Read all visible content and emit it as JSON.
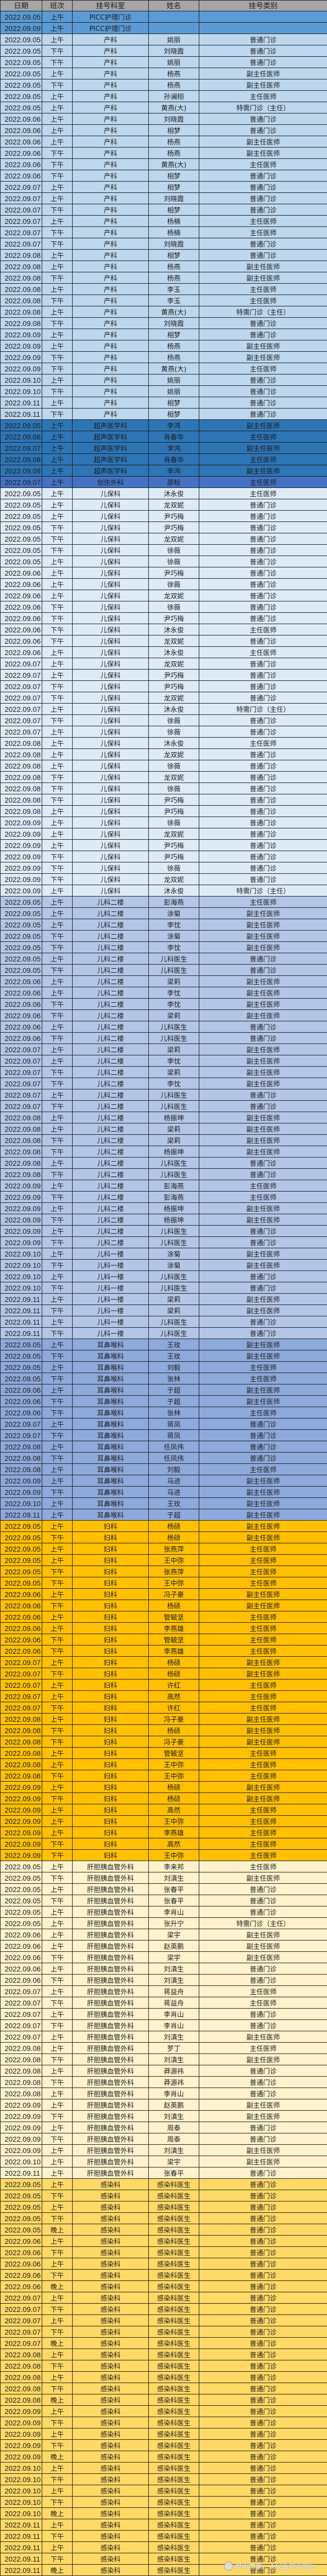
{
  "headers": [
    "日期",
    "班次",
    "挂号科室",
    "姓名",
    "挂号类别"
  ],
  "dept_colors": {
    "PICC护理门诊": "#5b9bd5",
    "产科": "#bdd7ee",
    "超声医学科": "#2e75b6",
    "创伤外科": "#4472c4",
    "儿保科": "#ddebf7",
    "儿科二楼": "#b4c6e7",
    "儿科一楼": "#b4c6e7",
    "耳鼻喉科": "#8ea9db",
    "妇科": "#ffc000",
    "肝胆胰血管外科": "#fff2cc",
    "感染科": "#ffd966"
  },
  "header_color": "#a6a6a6",
  "watermark": "昆明市第一人民医院北院区",
  "rows": [
    [
      "2022.09.05",
      "上午",
      "PICC护理门诊",
      "",
      ""
    ],
    [
      "2022.09.09",
      "上午",
      "PICC护理门诊",
      "",
      ""
    ],
    [
      "2022.09.05",
      "上午",
      "产科",
      "姚丽",
      "普通门诊"
    ],
    [
      "2022.09.05",
      "下午",
      "产科",
      "刘晓霞",
      "普通门诊"
    ],
    [
      "2022.09.05",
      "下午",
      "产科",
      "姚丽",
      "普通门诊"
    ],
    [
      "2022.09.05",
      "上午",
      "产科",
      "杨燕",
      "副主任医师"
    ],
    [
      "2022.09.05",
      "下午",
      "产科",
      "杨燕",
      "副主任医师"
    ],
    [
      "2022.09.05",
      "上午",
      "产科",
      "孙澜栩",
      "主任医师"
    ],
    [
      "2022.09.05",
      "上午",
      "产科",
      "黄燕(大)",
      "特需门诊（主任）"
    ],
    [
      "2022.09.06",
      "上午",
      "产科",
      "刘晓霞",
      "普通门诊"
    ],
    [
      "2022.09.06",
      "上午",
      "产科",
      "相梦",
      "普通门诊"
    ],
    [
      "2022.09.06",
      "上午",
      "产科",
      "杨燕",
      "副主任医师"
    ],
    [
      "2022.09.06",
      "下午",
      "产科",
      "杨燕",
      "副主任医师"
    ],
    [
      "2022.09.06",
      "下午",
      "产科",
      "黄燕(大)",
      "主任医师"
    ],
    [
      "2022.09.06",
      "下午",
      "产科",
      "相梦",
      "普通门诊"
    ],
    [
      "2022.09.07",
      "上午",
      "产科",
      "相梦",
      "普通门诊"
    ],
    [
      "2022.09.07",
      "上午",
      "产科",
      "刘晓霞",
      "普通门诊"
    ],
    [
      "2022.09.07",
      "下午",
      "产科",
      "相梦",
      "普通门诊"
    ],
    [
      "2022.09.07",
      "上午",
      "产科",
      "杨楠",
      "主任医师"
    ],
    [
      "2022.09.07",
      "下午",
      "产科",
      "杨楠",
      "主任医师"
    ],
    [
      "2022.09.07",
      "下午",
      "产科",
      "刘晓霞",
      "普通门诊"
    ],
    [
      "2022.09.08",
      "上午",
      "产科",
      "相梦",
      "普通门诊"
    ],
    [
      "2022.09.08",
      "上午",
      "产科",
      "杨燕",
      "副主任医师"
    ],
    [
      "2022.09.08",
      "下午",
      "产科",
      "杨燕",
      "副主任医师"
    ],
    [
      "2022.09.08",
      "上午",
      "产科",
      "李玉",
      "主任医师"
    ],
    [
      "2022.09.08",
      "下午",
      "产科",
      "李玉",
      "主任医师"
    ],
    [
      "2022.09.08",
      "上午",
      "产科",
      "黄燕(大)",
      "特需门诊（主任）"
    ],
    [
      "2022.09.08",
      "下午",
      "产科",
      "刘晓霞",
      "普通门诊"
    ],
    [
      "2022.09.09",
      "上午",
      "产科",
      "相梦",
      "普通门诊"
    ],
    [
      "2022.09.09",
      "上午",
      "产科",
      "杨燕",
      "副主任医师"
    ],
    [
      "2022.09.09",
      "下午",
      "产科",
      "杨燕",
      "副主任医师"
    ],
    [
      "2022.09.09",
      "下午",
      "产科",
      "黄燕(大)",
      "主任医师"
    ],
    [
      "2022.09.10",
      "上午",
      "产科",
      "姚丽",
      "普通门诊"
    ],
    [
      "2022.09.10",
      "下午",
      "产科",
      "姚丽",
      "普通门诊"
    ],
    [
      "2022.09.11",
      "上午",
      "产科",
      "相梦",
      "普通门诊"
    ],
    [
      "2022.09.11",
      "下午",
      "产科",
      "相梦",
      "普通门诊"
    ],
    [
      "2022.09.05",
      "上午",
      "超声医学科",
      "李鸿",
      "副主任医师"
    ],
    [
      "2022.09.06",
      "上午",
      "超声医学科",
      "肖春华",
      "主任医师"
    ],
    [
      "2022.09.07",
      "上午",
      "超声医学科",
      "李鸿",
      "副主任医师"
    ],
    [
      "2022.09.08",
      "上午",
      "超声医学科",
      "肖春华",
      "主任医师"
    ],
    [
      "2022.09.09",
      "上午",
      "超声医学科",
      "李鸿",
      "副主任医师"
    ],
    [
      "2022.09.07",
      "上午",
      "创伤外科",
      "邵标",
      "主任医师"
    ],
    [
      "2022.09.05",
      "上午",
      "儿保科",
      "沐永俊",
      "主任医师"
    ],
    [
      "2022.09.05",
      "上午",
      "儿保科",
      "龙双妮",
      "普通门诊"
    ],
    [
      "2022.09.05",
      "上午",
      "儿保科",
      "尹巧梅",
      "普通门诊"
    ],
    [
      "2022.09.05",
      "下午",
      "儿保科",
      "尹巧梅",
      "普通门诊"
    ],
    [
      "2022.09.05",
      "下午",
      "儿保科",
      "龙双妮",
      "普通门诊"
    ],
    [
      "2022.09.05",
      "下午",
      "儿保科",
      "徐薇",
      "普通门诊"
    ],
    [
      "2022.09.05",
      "上午",
      "儿保科",
      "徐薇",
      "普通门诊"
    ],
    [
      "2022.09.06",
      "上午",
      "儿保科",
      "尹巧梅",
      "普通门诊"
    ],
    [
      "2022.09.06",
      "上午",
      "儿保科",
      "徐薇",
      "普通门诊"
    ],
    [
      "2022.09.06",
      "上午",
      "儿保科",
      "龙双妮",
      "普通门诊"
    ],
    [
      "2022.09.06",
      "下午",
      "儿保科",
      "徐薇",
      "普通门诊"
    ],
    [
      "2022.09.06",
      "下午",
      "儿保科",
      "尹巧梅",
      "普通门诊"
    ],
    [
      "2022.09.06",
      "下午",
      "儿保科",
      "沐永俊",
      "主任医师"
    ],
    [
      "2022.09.06",
      "下午",
      "儿保科",
      "龙双妮",
      "普通门诊"
    ],
    [
      "2022.09.06",
      "上午",
      "儿保科",
      "沐永俊",
      "主任医师"
    ],
    [
      "2022.09.07",
      "上午",
      "儿保科",
      "龙双妮",
      "普通门诊"
    ],
    [
      "2022.09.07",
      "上午",
      "儿保科",
      "尹巧梅",
      "普通门诊"
    ],
    [
      "2022.09.07",
      "下午",
      "儿保科",
      "尹巧梅",
      "普通门诊"
    ],
    [
      "2022.09.07",
      "下午",
      "儿保科",
      "龙双妮",
      "普通门诊"
    ],
    [
      "2022.09.07",
      "上午",
      "儿保科",
      "沐永俊",
      "特需门诊（主任）"
    ],
    [
      "2022.09.07",
      "下午",
      "儿保科",
      "徐薇",
      "普通门诊"
    ],
    [
      "2022.09.07",
      "上午",
      "儿保科",
      "徐薇",
      "普通门诊"
    ],
    [
      "2022.09.08",
      "上午",
      "儿保科",
      "沐永俊",
      "主任医师"
    ],
    [
      "2022.09.08",
      "上午",
      "儿保科",
      "龙双妮",
      "普通门诊"
    ],
    [
      "2022.09.08",
      "上午",
      "儿保科",
      "徐薇",
      "普通门诊"
    ],
    [
      "2022.09.08",
      "下午",
      "儿保科",
      "龙双妮",
      "普通门诊"
    ],
    [
      "2022.09.08",
      "下午",
      "儿保科",
      "徐薇",
      "普通门诊"
    ],
    [
      "2022.09.08",
      "下午",
      "儿保科",
      "尹巧梅",
      "普通门诊"
    ],
    [
      "2022.09.08",
      "上午",
      "儿保科",
      "尹巧梅",
      "普通门诊"
    ],
    [
      "2022.09.09",
      "上午",
      "儿保科",
      "徐薇",
      "普通门诊"
    ],
    [
      "2022.09.09",
      "上午",
      "儿保科",
      "龙双妮",
      "普通门诊"
    ],
    [
      "2022.09.09",
      "上午",
      "儿保科",
      "尹巧梅",
      "普通门诊"
    ],
    [
      "2022.09.09",
      "下午",
      "儿保科",
      "尹巧梅",
      "普通门诊"
    ],
    [
      "2022.09.09",
      "下午",
      "儿保科",
      "徐薇",
      "普通门诊"
    ],
    [
      "2022.09.09",
      "下午",
      "儿保科",
      "龙双妮",
      "普通门诊"
    ],
    [
      "2022.09.09",
      "上午",
      "儿保科",
      "沐永俊",
      "特需门诊（主任）"
    ],
    [
      "2022.09.05",
      "上午",
      "儿科二楼",
      "彭海燕",
      "主任医师"
    ],
    [
      "2022.09.05",
      "上午",
      "儿科二楼",
      "涂菊",
      "副主任医师"
    ],
    [
      "2022.09.05",
      "上午",
      "儿科二楼",
      "李忱",
      "副主任医师"
    ],
    [
      "2022.09.05",
      "下午",
      "儿科二楼",
      "涂菊",
      "副主任医师"
    ],
    [
      "2022.09.05",
      "下午",
      "儿科二楼",
      "李忱",
      "副主任医师"
    ],
    [
      "2022.09.05",
      "上午",
      "儿科二楼",
      "儿科医生",
      "普通门诊"
    ],
    [
      "2022.09.05",
      "下午",
      "儿科二楼",
      "儿科医生",
      "普通门诊"
    ],
    [
      "2022.09.06",
      "上午",
      "儿科二楼",
      "梁莉",
      "副主任医师"
    ],
    [
      "2022.09.06",
      "上午",
      "儿科二楼",
      "李忱",
      "副主任医师"
    ],
    [
      "2022.09.06",
      "下午",
      "儿科二楼",
      "李忱",
      "副主任医师"
    ],
    [
      "2022.09.06",
      "下午",
      "儿科二楼",
      "梁莉",
      "副主任医师"
    ],
    [
      "2022.09.06",
      "上午",
      "儿科二楼",
      "儿科医生",
      "普通门诊"
    ],
    [
      "2022.09.06",
      "下午",
      "儿科二楼",
      "儿科医生",
      "普通门诊"
    ],
    [
      "2022.09.07",
      "上午",
      "儿科二楼",
      "梁莉",
      "副主任医师"
    ],
    [
      "2022.09.07",
      "上午",
      "儿科二楼",
      "李忱",
      "副主任医师"
    ],
    [
      "2022.09.07",
      "下午",
      "儿科二楼",
      "梁莉",
      "副主任医师"
    ],
    [
      "2022.09.07",
      "下午",
      "儿科二楼",
      "李忱",
      "副主任医师"
    ],
    [
      "2022.09.07",
      "上午",
      "儿科二楼",
      "儿科医生",
      "普通门诊"
    ],
    [
      "2022.09.07",
      "下午",
      "儿科二楼",
      "儿科医生",
      "普通门诊"
    ],
    [
      "2022.09.08",
      "上午",
      "儿科二楼",
      "杨振坤",
      "副主任医师"
    ],
    [
      "2022.09.08",
      "上午",
      "儿科二楼",
      "梁莉",
      "副主任医师"
    ],
    [
      "2022.09.08",
      "下午",
      "儿科二楼",
      "梁莉",
      "副主任医师"
    ],
    [
      "2022.09.08",
      "下午",
      "儿科二楼",
      "杨振坤",
      "副主任医师"
    ],
    [
      "2022.09.08",
      "上午",
      "儿科二楼",
      "儿科医生",
      "普通门诊"
    ],
    [
      "2022.09.08",
      "下午",
      "儿科二楼",
      "儿科医生",
      "普通门诊"
    ],
    [
      "2022.09.09",
      "上午",
      "儿科二楼",
      "彭海燕",
      "主任医师"
    ],
    [
      "2022.09.09",
      "下午",
      "儿科二楼",
      "彭海燕",
      "主任医师"
    ],
    [
      "2022.09.09",
      "上午",
      "儿科二楼",
      "杨振坤",
      "副主任医师"
    ],
    [
      "2022.09.09",
      "下午",
      "儿科二楼",
      "杨振坤",
      "副主任医师"
    ],
    [
      "2022.09.09",
      "上午",
      "儿科二楼",
      "儿科医生",
      "普通门诊"
    ],
    [
      "2022.09.09",
      "下午",
      "儿科二楼",
      "儿科医生",
      "普通门诊"
    ],
    [
      "2022.09.10",
      "上午",
      "儿科一楼",
      "涂菊",
      "副主任医师"
    ],
    [
      "2022.09.10",
      "下午",
      "儿科一楼",
      "涂菊",
      "副主任医师"
    ],
    [
      "2022.09.10",
      "上午",
      "儿科一楼",
      "儿科医生",
      "普通门诊"
    ],
    [
      "2022.09.10",
      "下午",
      "儿科一楼",
      "儿科医生",
      "普通门诊"
    ],
    [
      "2022.09.11",
      "上午",
      "儿科一楼",
      "梁莉",
      "副主任医师"
    ],
    [
      "2022.09.11",
      "下午",
      "儿科一楼",
      "梁莉",
      "副主任医师"
    ],
    [
      "2022.09.11",
      "上午",
      "儿科一楼",
      "儿科医生",
      "普通门诊"
    ],
    [
      "2022.09.11",
      "下午",
      "儿科一楼",
      "儿科医生",
      "普通门诊"
    ],
    [
      "2022.09.05",
      "上午",
      "耳鼻喉科",
      "王玫",
      "副主任医师"
    ],
    [
      "2022.09.05",
      "下午",
      "耳鼻喉科",
      "王玫",
      "副主任医师"
    ],
    [
      "2022.09.05",
      "上午",
      "耳鼻喉科",
      "刘毅",
      "主任医师"
    ],
    [
      "2022.09.05",
      "下午",
      "耳鼻喉科",
      "张林",
      "主任医师"
    ],
    [
      "2022.09.06",
      "上午",
      "耳鼻喉科",
      "于超",
      "副主任医师"
    ],
    [
      "2022.09.06",
      "下午",
      "耳鼻喉科",
      "于超",
      "副主任医师"
    ],
    [
      "2022.09.06",
      "下午",
      "耳鼻喉科",
      "张林",
      "主任医师"
    ],
    [
      "2022.09.07",
      "上午",
      "耳鼻喉科",
      "蒋凤",
      "普通门诊"
    ],
    [
      "2022.09.07",
      "下午",
      "耳鼻喉科",
      "蒋凤",
      "普通门诊"
    ],
    [
      "2022.09.08",
      "上午",
      "耳鼻喉科",
      "任凤伟",
      "普通门诊"
    ],
    [
      "2022.09.08",
      "下午",
      "耳鼻喉科",
      "任凤伟",
      "普通门诊"
    ],
    [
      "2022.09.08",
      "上午",
      "耳鼻喉科",
      "刘毅",
      "主任医师"
    ],
    [
      "2022.09.09",
      "上午",
      "耳鼻喉科",
      "马进",
      "副主任医师"
    ],
    [
      "2022.09.09",
      "下午",
      "耳鼻喉科",
      "马进",
      "副主任医师"
    ],
    [
      "2022.09.10",
      "上午",
      "耳鼻喉科",
      "王玫",
      "副主任医师"
    ],
    [
      "2022.09.11",
      "上午",
      "耳鼻喉科",
      "于超",
      "副主任医师"
    ],
    [
      "2022.09.05",
      "上午",
      "妇科",
      "杨硕",
      "副主任医师"
    ],
    [
      "2022.09.05",
      "下午",
      "妇科",
      "杨硕",
      "副主任医师"
    ],
    [
      "2022.09.05",
      "上午",
      "妇科",
      "张燕萍",
      "主任医师"
    ],
    [
      "2022.09.05",
      "上午",
      "妇科",
      "王中弥",
      "主任医师"
    ],
    [
      "2022.09.05",
      "下午",
      "妇科",
      "张燕萍",
      "主任医师"
    ],
    [
      "2022.09.05",
      "下午",
      "妇科",
      "王中弥",
      "主任医师"
    ],
    [
      "2022.09.06",
      "上午",
      "妇科",
      "冯子豪",
      "副主任医师"
    ],
    [
      "2022.09.06",
      "下午",
      "妇科",
      "杨硕",
      "副主任医师"
    ],
    [
      "2022.09.06",
      "上午",
      "妇科",
      "管毓坚",
      "主任医师"
    ],
    [
      "2022.09.06",
      "上午",
      "妇科",
      "李燕雄",
      "主任医师"
    ],
    [
      "2022.09.06",
      "下午",
      "妇科",
      "管毓坚",
      "主任医师"
    ],
    [
      "2022.09.06",
      "下午",
      "妇科",
      "李燕雄",
      "主任医师"
    ],
    [
      "2022.09.07",
      "上午",
      "妇科",
      "杨硕",
      "副主任医师"
    ],
    [
      "2022.09.07",
      "下午",
      "妇科",
      "杨硕",
      "副主任医师"
    ],
    [
      "2022.09.07",
      "上午",
      "妇科",
      "许红",
      "主任医师"
    ],
    [
      "2022.09.07",
      "上午",
      "妇科",
      "高然",
      "主任医师"
    ],
    [
      "2022.09.07",
      "下午",
      "妇科",
      "许红",
      "主任医师"
    ],
    [
      "2022.09.08",
      "上午",
      "妇科",
      "冯子豪",
      "副主任医师"
    ],
    [
      "2022.09.08",
      "下午",
      "妇科",
      "杨硕",
      "副主任医师"
    ],
    [
      "2022.09.08",
      "下午",
      "妇科",
      "冯子豪",
      "副主任医师"
    ],
    [
      "2022.09.08",
      "上午",
      "妇科",
      "管毓坚",
      "主任医师"
    ],
    [
      "2022.09.08",
      "上午",
      "妇科",
      "王中弥",
      "主任医师"
    ],
    [
      "2022.09.08",
      "下午",
      "妇科",
      "王中弥",
      "主任医师"
    ],
    [
      "2022.09.09",
      "上午",
      "妇科",
      "杨硕",
      "副主任医师"
    ],
    [
      "2022.09.09",
      "下午",
      "妇科",
      "杨硕",
      "副主任医师"
    ],
    [
      "2022.09.09",
      "上午",
      "妇科",
      "高然",
      "主任医师"
    ],
    [
      "2022.09.09",
      "上午",
      "妇科",
      "王中弥",
      "主任医师"
    ],
    [
      "2022.09.09",
      "上午",
      "妇科",
      "李燕雄",
      "主任医师"
    ],
    [
      "2022.09.09",
      "下午",
      "妇科",
      "高然",
      "主任医师"
    ],
    [
      "2022.09.09",
      "下午",
      "妇科",
      "王中弥",
      "主任医师"
    ],
    [
      "2022.09.05",
      "上午",
      "肝胆胰血管外科",
      "李来邦",
      "主任医师"
    ],
    [
      "2022.09.05",
      "下午",
      "肝胆胰血管外科",
      "刘滇生",
      "副主任医师"
    ],
    [
      "2022.09.05",
      "上午",
      "肝胆胰血管外科",
      "张春平",
      "普通门诊"
    ],
    [
      "2022.09.05",
      "下午",
      "肝胆胰血管外科",
      "张春平",
      "普通门诊"
    ],
    [
      "2022.09.05",
      "上午",
      "肝胆胰血管外科",
      "李肖山",
      "普通门诊"
    ],
    [
      "2022.09.05",
      "上午",
      "肝胆胰血管外科",
      "张升宁",
      "特需门诊（主任）"
    ],
    [
      "2022.09.06",
      "上午",
      "肝胆胰血管外科",
      "梁宇",
      "副主任医师"
    ],
    [
      "2022.09.06",
      "上午",
      "肝胆胰血管外科",
      "赵英鹏",
      "副主任医师"
    ],
    [
      "2022.09.06",
      "下午",
      "肝胆胰血管外科",
      "梁宇",
      "副主任医师"
    ],
    [
      "2022.09.06",
      "上午",
      "肝胆胰血管外科",
      "刘滇生",
      "普通门诊"
    ],
    [
      "2022.09.06",
      "下午",
      "肝胆胰血管外科",
      "刘滇生",
      "普通门诊"
    ],
    [
      "2022.09.07",
      "上午",
      "肝胆胰血管外科",
      "蒋益舟",
      "主任医师"
    ],
    [
      "2022.09.07",
      "下午",
      "肝胆胰血管外科",
      "蒋益舟",
      "主任医师"
    ],
    [
      "2022.09.07",
      "上午",
      "肝胆胰血管外科",
      "李肖山",
      "普通门诊"
    ],
    [
      "2022.09.07",
      "下午",
      "肝胆胰血管外科",
      "李肖山",
      "普通门诊"
    ],
    [
      "2022.09.07",
      "上午",
      "肝胆胰血管外科",
      "刘滇生",
      "副主任医师"
    ],
    [
      "2022.09.08",
      "上午",
      "肝胆胰血管外科",
      "罗丁",
      "主任医师"
    ],
    [
      "2022.09.08",
      "下午",
      "肝胆胰血管外科",
      "刘滇生",
      "副主任医师"
    ],
    [
      "2022.09.08",
      "上午",
      "肝胆胰血管外科",
      "莽源祎",
      "普通门诊"
    ],
    [
      "2022.09.08",
      "下午",
      "肝胆胰血管外科",
      "莽源祎",
      "普通门诊"
    ],
    [
      "2022.09.08",
      "上午",
      "肝胆胰血管外科",
      "李肖山",
      "普通门诊"
    ],
    [
      "2022.09.09",
      "上午",
      "肝胆胰血管外科",
      "赵英鹏",
      "副主任医师"
    ],
    [
      "2022.09.09",
      "下午",
      "肝胆胰血管外科",
      "刘滇生",
      "副主任医师"
    ],
    [
      "2022.09.09",
      "上午",
      "肝胆胰血管外科",
      "周泰",
      "普通门诊"
    ],
    [
      "2022.09.09",
      "下午",
      "肝胆胰血管外科",
      "周泰",
      "普通门诊"
    ],
    [
      "2022.09.09",
      "上午",
      "肝胆胰血管外科",
      "刘滇生",
      "副主任医师"
    ],
    [
      "2022.09.10",
      "上午",
      "肝胆胰血管外科",
      "梁宇",
      "副主任医师"
    ],
    [
      "2022.09.11",
      "上午",
      "肝胆胰血管外科",
      "张春平",
      "普通门诊"
    ],
    [
      "2022.09.05",
      "上午",
      "感染科",
      "感染科医生",
      "普通门诊"
    ],
    [
      "2022.09.05",
      "下午",
      "感染科",
      "感染科医生",
      "普通门诊"
    ],
    [
      "2022.09.05",
      "上午",
      "感染科",
      "感染科医生",
      "普通门诊"
    ],
    [
      "2022.09.05",
      "下午",
      "感染科",
      "感染科医生",
      "普通门诊"
    ],
    [
      "2022.09.05",
      "晚上",
      "感染科",
      "感染科医生",
      "普通门诊"
    ],
    [
      "2022.09.06",
      "上午",
      "感染科",
      "感染科医生",
      "普通门诊"
    ],
    [
      "2022.09.06",
      "下午",
      "感染科",
      "感染科医生",
      "普通门诊"
    ],
    [
      "2022.09.06",
      "上午",
      "感染科",
      "感染科医生",
      "普通门诊"
    ],
    [
      "2022.09.06",
      "下午",
      "感染科",
      "感染科医生",
      "普通门诊"
    ],
    [
      "2022.09.06",
      "晚上",
      "感染科",
      "感染科医生",
      "普通门诊"
    ],
    [
      "2022.09.07",
      "上午",
      "感染科",
      "感染科医生",
      "普通门诊"
    ],
    [
      "2022.09.07",
      "下午",
      "感染科",
      "感染科医生",
      "普通门诊"
    ],
    [
      "2022.09.07",
      "上午",
      "感染科",
      "感染科医生",
      "普通门诊"
    ],
    [
      "2022.09.07",
      "下午",
      "感染科",
      "感染科医生",
      "普通门诊"
    ],
    [
      "2022.09.07",
      "晚上",
      "感染科",
      "感染科医生",
      "普通门诊"
    ],
    [
      "2022.09.08",
      "上午",
      "感染科",
      "感染科医生",
      "普通门诊"
    ],
    [
      "2022.09.08",
      "下午",
      "感染科",
      "感染科医生",
      "普通门诊"
    ],
    [
      "2022.09.08",
      "上午",
      "感染科",
      "感染科医生",
      "普通门诊"
    ],
    [
      "2022.09.08",
      "下午",
      "感染科",
      "感染科医生",
      "普通门诊"
    ],
    [
      "2022.09.08",
      "晚上",
      "感染科",
      "感染科医生",
      "普通门诊"
    ],
    [
      "2022.09.09",
      "上午",
      "感染科",
      "感染科医生",
      "普通门诊"
    ],
    [
      "2022.09.09",
      "下午",
      "感染科",
      "感染科医生",
      "普通门诊"
    ],
    [
      "2022.09.09",
      "上午",
      "感染科",
      "感染科医生",
      "普通门诊"
    ],
    [
      "2022.09.09",
      "下午",
      "感染科",
      "感染科医生",
      "普通门诊"
    ],
    [
      "2022.09.09",
      "晚上",
      "感染科",
      "感染科医生",
      "普通门诊"
    ],
    [
      "2022.09.10",
      "上午",
      "感染科",
      "感染科医生",
      "普通门诊"
    ],
    [
      "2022.09.10",
      "下午",
      "感染科",
      "感染科医生",
      "普通门诊"
    ],
    [
      "2022.09.10",
      "上午",
      "感染科",
      "感染科医生",
      "普通门诊"
    ],
    [
      "2022.09.10",
      "下午",
      "感染科",
      "感染科医生",
      "普通门诊"
    ],
    [
      "2022.09.10",
      "晚上",
      "感染科",
      "感染科医生",
      "普通门诊"
    ],
    [
      "2022.09.11",
      "上午",
      "感染科",
      "感染科医生",
      "普通门诊"
    ],
    [
      "2022.09.11",
      "下午",
      "感染科",
      "感染科医生",
      "普通门诊"
    ],
    [
      "2022.09.11",
      "上午",
      "感染科",
      "感染科医生",
      "普通门诊"
    ],
    [
      "2022.09.11",
      "下午",
      "感染科",
      "感染科医生",
      "普通门诊"
    ],
    [
      "2022.09.11",
      "晚上",
      "感染科",
      "感染科医生",
      "普通门诊"
    ]
  ]
}
